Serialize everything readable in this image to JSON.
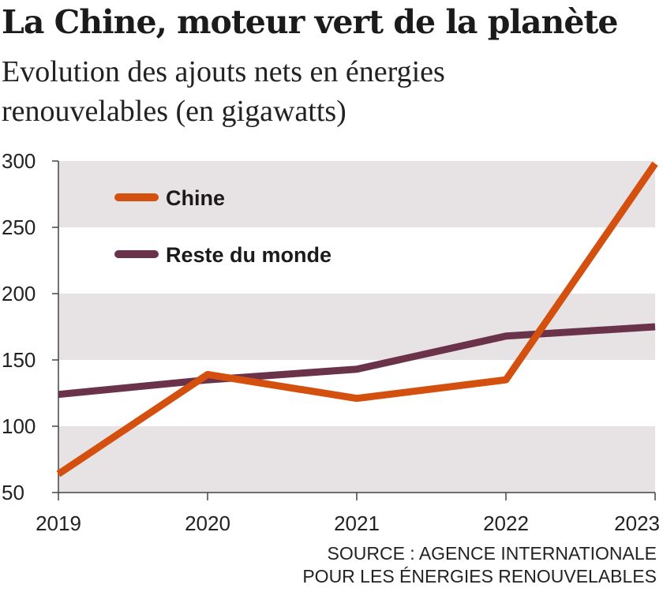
{
  "chart_data": {
    "type": "line",
    "title": "La Chine, moteur vert de la planète",
    "subtitle_lines": [
      "Evolution des ajouts nets en énergies",
      "renouvelables (en gigawatts)"
    ],
    "categories": [
      "2019",
      "2020",
      "2021",
      "2022",
      "2023"
    ],
    "series": [
      {
        "name": "Chine",
        "color": "#d4500e",
        "values": [
          64,
          139,
          121,
          135,
          298
        ]
      },
      {
        "name": "Reste du monde",
        "color": "#6a3349",
        "values": [
          124,
          135,
          143,
          168,
          175
        ]
      }
    ],
    "ylim": [
      50,
      300
    ],
    "yticks": [
      300,
      250,
      200,
      150,
      100,
      50
    ],
    "grid": "alternating horizontal bands",
    "band_color": "#e7e3e5",
    "legend_position": "top-left",
    "source_lines": [
      "SOURCE : AGENCE INTERNATIONALE",
      "POUR LES ÉNERGIES RENOUVELABLES"
    ]
  }
}
